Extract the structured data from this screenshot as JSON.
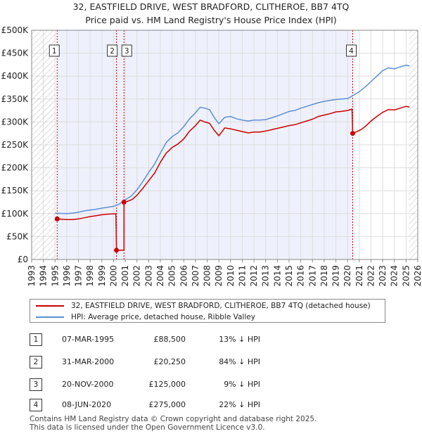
{
  "chart_data": {
    "type": "line",
    "title": "32, EASTFIELD DRIVE, WEST BRADFORD, CLITHEROE, BB7 4TQ",
    "subtitle": "Price paid vs. HM Land Registry's House Price Index (HPI)",
    "xlabel": "",
    "ylabel": "",
    "xlim": [
      1993,
      2026
    ],
    "ylim": [
      0,
      500000
    ],
    "x_ticks": [
      "1993",
      "1994",
      "1995",
      "1996",
      "1997",
      "1998",
      "1999",
      "2000",
      "2001",
      "2002",
      "2003",
      "2004",
      "2005",
      "2006",
      "2007",
      "2008",
      "2009",
      "2010",
      "2011",
      "2012",
      "2013",
      "2014",
      "2015",
      "2016",
      "2017",
      "2018",
      "2019",
      "2020",
      "2021",
      "2022",
      "2023",
      "2024",
      "2025",
      "2026"
    ],
    "y_ticks": [
      {
        "value": 0,
        "label": "£0"
      },
      {
        "value": 50000,
        "label": "£50K"
      },
      {
        "value": 100000,
        "label": "£100K"
      },
      {
        "value": 150000,
        "label": "£150K"
      },
      {
        "value": 200000,
        "label": "£200K"
      },
      {
        "value": 250000,
        "label": "£250K"
      },
      {
        "value": 300000,
        "label": "£300K"
      },
      {
        "value": 350000,
        "label": "£350K"
      },
      {
        "value": 400000,
        "label": "£400K"
      },
      {
        "value": 450000,
        "label": "£450K"
      },
      {
        "value": 500000,
        "label": "£500K"
      }
    ],
    "hatch_ranges": [
      [
        1993,
        1995.0
      ],
      [
        2025.25,
        2026
      ]
    ],
    "sale_markers": [
      {
        "id": "1",
        "x": 1995.18,
        "value": 88500
      },
      {
        "id": "2",
        "x": 2000.25,
        "value": 20250
      },
      {
        "id": "3",
        "x": 2000.89,
        "value": 125000
      },
      {
        "id": "4",
        "x": 2020.44,
        "value": 275000
      }
    ],
    "series": [
      {
        "name": "32, EASTFIELD DRIVE, WEST BRADFORD, CLITHEROE, BB7 4TQ (detached house)",
        "color": "#cc0000",
        "points": [
          [
            1995.18,
            88500
          ],
          [
            1995.5,
            88000
          ],
          [
            1996.0,
            87000
          ],
          [
            1996.5,
            87000
          ],
          [
            1997.0,
            88500
          ],
          [
            1997.5,
            91000
          ],
          [
            1998.0,
            93500
          ],
          [
            1998.5,
            95500
          ],
          [
            1999.0,
            97500
          ],
          [
            1999.5,
            99000
          ],
          [
            2000.0,
            99500
          ],
          [
            2000.2,
            99500
          ],
          [
            2000.25,
            20250
          ],
          [
            2000.89,
            20250
          ],
          [
            2000.89,
            125000
          ],
          [
            2001.2,
            127000
          ],
          [
            2001.6,
            131000
          ],
          [
            2002.0,
            140000
          ],
          [
            2002.5,
            155000
          ],
          [
            2003.0,
            172000
          ],
          [
            2003.5,
            188000
          ],
          [
            2004.0,
            212000
          ],
          [
            2004.5,
            232000
          ],
          [
            2005.0,
            244000
          ],
          [
            2005.5,
            252000
          ],
          [
            2006.0,
            263000
          ],
          [
            2006.5,
            280000
          ],
          [
            2007.0,
            292000
          ],
          [
            2007.4,
            304000
          ],
          [
            2007.8,
            300000
          ],
          [
            2008.2,
            297000
          ],
          [
            2008.6,
            282000
          ],
          [
            2009.0,
            270000
          ],
          [
            2009.5,
            287000
          ],
          [
            2010.0,
            285000
          ],
          [
            2010.5,
            282000
          ],
          [
            2011.0,
            279000
          ],
          [
            2011.5,
            276000
          ],
          [
            2012.0,
            278000
          ],
          [
            2012.5,
            278000
          ],
          [
            2013.0,
            280000
          ],
          [
            2013.5,
            283000
          ],
          [
            2014.0,
            286000
          ],
          [
            2014.5,
            289000
          ],
          [
            2015.0,
            292000
          ],
          [
            2015.5,
            294000
          ],
          [
            2016.0,
            298000
          ],
          [
            2016.5,
            302000
          ],
          [
            2017.0,
            306000
          ],
          [
            2017.5,
            312000
          ],
          [
            2018.0,
            315000
          ],
          [
            2018.5,
            318000
          ],
          [
            2019.0,
            322000
          ],
          [
            2019.5,
            323000
          ],
          [
            2020.0,
            325000
          ],
          [
            2020.38,
            328000
          ],
          [
            2020.44,
            275000
          ],
          [
            2020.8,
            279000
          ],
          [
            2021.2,
            284000
          ],
          [
            2021.6,
            292000
          ],
          [
            2022.0,
            302000
          ],
          [
            2022.5,
            312000
          ],
          [
            2023.0,
            321000
          ],
          [
            2023.5,
            327000
          ],
          [
            2024.0,
            326000
          ],
          [
            2024.5,
            330000
          ],
          [
            2025.0,
            334000
          ],
          [
            2025.3,
            332000
          ]
        ]
      },
      {
        "name": "HPI: Average price, detached house, Ribble Valley",
        "color": "#5b8fd4",
        "points": [
          [
            1995.0,
            101000
          ],
          [
            1995.5,
            100500
          ],
          [
            1996.0,
            100000
          ],
          [
            1996.5,
            101000
          ],
          [
            1997.0,
            103000
          ],
          [
            1997.5,
            106000
          ],
          [
            1998.0,
            108000
          ],
          [
            1998.5,
            109500
          ],
          [
            1999.0,
            112000
          ],
          [
            1999.5,
            114000
          ],
          [
            2000.0,
            116000
          ],
          [
            2000.5,
            121000
          ],
          [
            2001.0,
            130000
          ],
          [
            2001.5,
            138000
          ],
          [
            2002.0,
            152000
          ],
          [
            2002.5,
            170000
          ],
          [
            2003.0,
            190000
          ],
          [
            2003.5,
            208000
          ],
          [
            2004.0,
            232000
          ],
          [
            2004.5,
            255000
          ],
          [
            2005.0,
            268000
          ],
          [
            2005.5,
            276000
          ],
          [
            2006.0,
            290000
          ],
          [
            2006.5,
            307000
          ],
          [
            2007.0,
            320000
          ],
          [
            2007.4,
            332000
          ],
          [
            2007.8,
            330000
          ],
          [
            2008.2,
            327000
          ],
          [
            2008.6,
            310000
          ],
          [
            2009.0,
            296000
          ],
          [
            2009.5,
            310000
          ],
          [
            2010.0,
            312000
          ],
          [
            2010.5,
            307000
          ],
          [
            2011.0,
            304000
          ],
          [
            2011.5,
            302000
          ],
          [
            2012.0,
            304000
          ],
          [
            2012.5,
            304000
          ],
          [
            2013.0,
            305000
          ],
          [
            2013.5,
            309000
          ],
          [
            2014.0,
            313000
          ],
          [
            2014.5,
            318000
          ],
          [
            2015.0,
            323000
          ],
          [
            2015.5,
            325000
          ],
          [
            2016.0,
            330000
          ],
          [
            2016.5,
            334000
          ],
          [
            2017.0,
            338000
          ],
          [
            2017.5,
            342000
          ],
          [
            2018.0,
            345000
          ],
          [
            2018.5,
            347000
          ],
          [
            2019.0,
            349000
          ],
          [
            2019.5,
            350000
          ],
          [
            2020.0,
            351000
          ],
          [
            2020.5,
            358000
          ],
          [
            2021.0,
            366000
          ],
          [
            2021.5,
            376000
          ],
          [
            2022.0,
            388000
          ],
          [
            2022.5,
            400000
          ],
          [
            2023.0,
            412000
          ],
          [
            2023.5,
            418000
          ],
          [
            2024.0,
            416000
          ],
          [
            2024.5,
            420000
          ],
          [
            2025.0,
            424000
          ],
          [
            2025.3,
            422000
          ]
        ]
      }
    ]
  },
  "legend": {
    "items": [
      {
        "label": "32, EASTFIELD DRIVE, WEST BRADFORD, CLITHEROE, BB7 4TQ (detached house)",
        "color": "#cc0000"
      },
      {
        "label": "HPI: Average price, detached house, Ribble Valley",
        "color": "#5b8fd4"
      }
    ]
  },
  "transactions": [
    {
      "num": "1",
      "date": "07-MAR-1995",
      "price": "£88,500",
      "hpi": "13% ↓ HPI"
    },
    {
      "num": "2",
      "date": "31-MAR-2000",
      "price": "£20,250",
      "hpi": "84% ↓ HPI"
    },
    {
      "num": "3",
      "date": "20-NOV-2000",
      "price": "£125,000",
      "hpi": "9% ↓ HPI"
    },
    {
      "num": "4",
      "date": "08-JUN-2020",
      "price": "£275,000",
      "hpi": "22% ↓ HPI"
    }
  ],
  "footer": {
    "line1": "Contains HM Land Registry data © Crown copyright and database right 2025.",
    "line2": "This data is licensed under the Open Government Licence v3.0."
  }
}
